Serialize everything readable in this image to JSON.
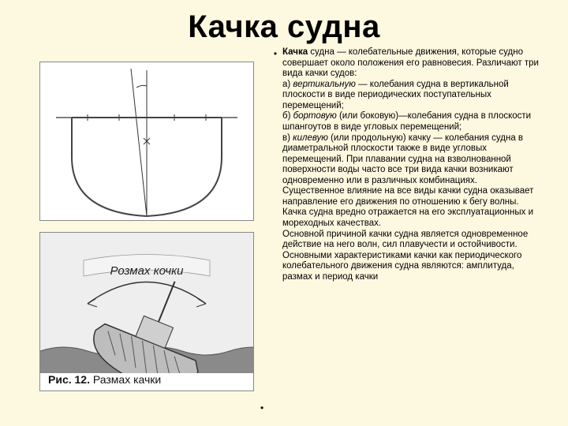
{
  "title": {
    "word1": "Качка",
    "word2": "судна"
  },
  "body": {
    "lead": "Качка",
    "text": " судна — колебательные движения, которые судно совершает около положения его равновесия. Различают три вида качки судов:\nа) вертикальную — колебания судна в вертикальной плоскости в виде периодических поступательных перемещений;\nб) бортовую (или боковую)—колебания судна в плоскости шпангоутов в виде угловых перемещений;\nв) килевую (или продольную) качку — колебания судна в диаметральной плоскости также в виде угловых перемещений. При плавании судна на взволнованной поверхности воды часто все три вида качки возникают одновременно или в различных комбинациях. Существенное влияние на все виды качки судна оказывает направление его движения по отношению к бегу волны. Качка судна вредно отражается на его эксплуатационных и мореходных качествах.\nОсновной причиной качки судна является одновременное действие на него волн, сил плавучести и остойчивости. Основными характеристиками качки как периодического колебательного движения судна являются: амплитуда, размах и период качки"
  },
  "figures": {
    "fig1": {
      "hull_stroke": "#444",
      "centerline_stroke": "#333",
      "waterline_stroke": "#333",
      "angle_stroke": "#333"
    },
    "fig2": {
      "label": "Розмах кочки",
      "caption_prefix": "Рис. 12.",
      "caption_rest": "Размах качки",
      "water_fill": "#8a8a8a",
      "ship_stroke": "#333",
      "bg": "#eeeeee"
    }
  },
  "colors": {
    "page_bg": "#fdf9e0",
    "title_color": "#000000",
    "text_color": "#000000"
  }
}
